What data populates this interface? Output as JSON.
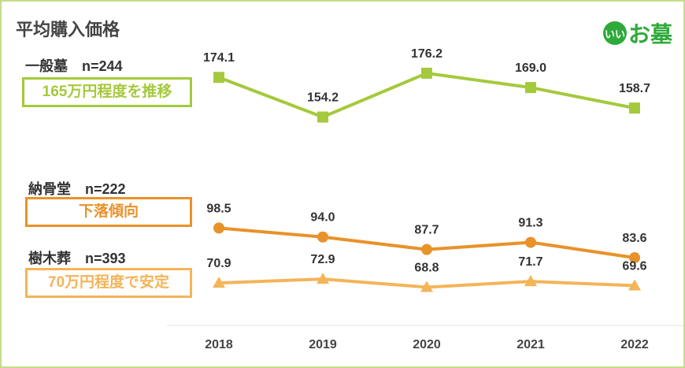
{
  "title": "平均購入価格",
  "logo": {
    "circle": "いい",
    "text": "お墓"
  },
  "groups": [
    {
      "label": "一般墓　n=244",
      "note": "165万円程度を推移",
      "color": "#a5c93c"
    },
    {
      "label": "納骨堂　n=222",
      "note": "下落傾向",
      "color": "#e8922a"
    },
    {
      "label": "樹木葬　n=393",
      "note": "70万円程度で安定",
      "color": "#f4b458"
    }
  ],
  "chart_data": {
    "type": "line",
    "categories": [
      "2018",
      "2019",
      "2020",
      "2021",
      "2022"
    ],
    "ylim": [
      50,
      190
    ],
    "grid": false,
    "series": [
      {
        "name": "一般墓",
        "values": [
          174.1,
          154.2,
          176.2,
          169.0,
          158.7
        ],
        "color": "#a5c93c",
        "marker": "square"
      },
      {
        "name": "納骨堂",
        "values": [
          98.5,
          94.0,
          87.7,
          91.3,
          83.6
        ],
        "color": "#e8922a",
        "marker": "circle"
      },
      {
        "name": "樹木葬",
        "values": [
          70.9,
          72.9,
          68.8,
          71.7,
          69.6
        ],
        "color": "#f4b458",
        "marker": "triangle"
      }
    ]
  }
}
